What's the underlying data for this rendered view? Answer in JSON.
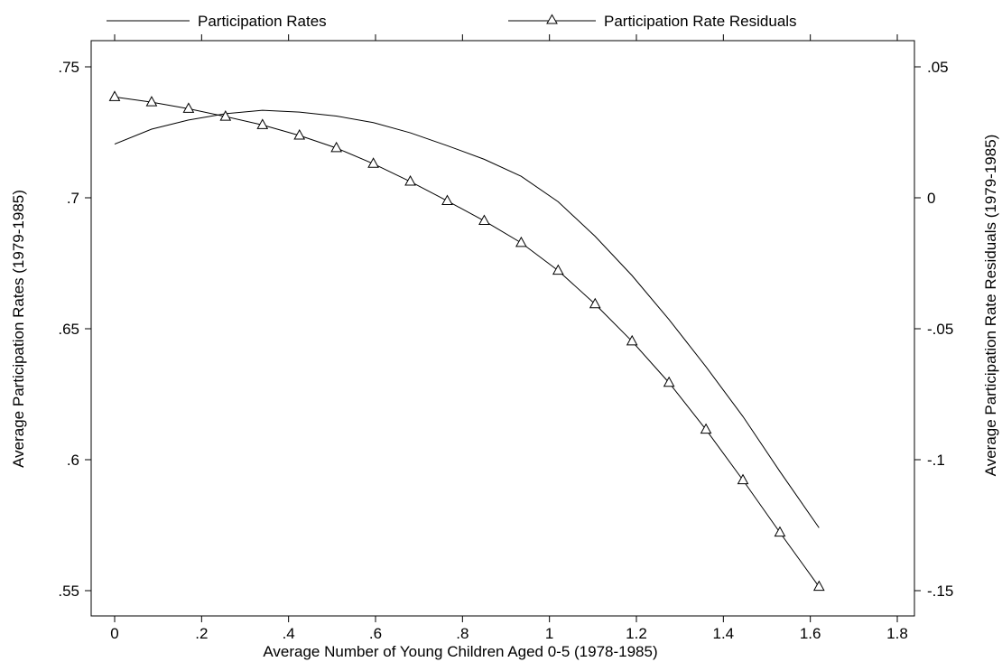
{
  "chart_data": {
    "type": "line",
    "title": "",
    "legend": {
      "placement": "top",
      "entries": [
        {
          "label": "Participation Rates",
          "marker": "none"
        },
        {
          "label": "Participation Rate Residuals",
          "marker": "triangle"
        }
      ]
    },
    "xlabel": "Average Number of Young Children Aged 0-5 (1978-1985)",
    "ylabel_left": "Average Participation Rates (1979-1985)",
    "ylabel_right": "Average Participation Rate Residuals (1979-1985)",
    "xlim": [
      0,
      1.8
    ],
    "ylim_left": [
      0.55,
      0.75
    ],
    "ylim_right": [
      -0.15,
      0.05
    ],
    "x_ticks": [
      {
        "value": 0,
        "label": "0"
      },
      {
        "value": 0.2,
        "label": ".2"
      },
      {
        "value": 0.4,
        "label": ".4"
      },
      {
        "value": 0.6,
        "label": ".6"
      },
      {
        "value": 0.8,
        "label": ".8"
      },
      {
        "value": 1.0,
        "label": "1"
      },
      {
        "value": 1.2,
        "label": "1.2"
      },
      {
        "value": 1.4,
        "label": "1.4"
      },
      {
        "value": 1.6,
        "label": "1.6"
      },
      {
        "value": 1.8,
        "label": "1.8"
      }
    ],
    "y_left_ticks": [
      {
        "value": 0.55,
        "label": ".55"
      },
      {
        "value": 0.6,
        "label": ".6"
      },
      {
        "value": 0.65,
        "label": ".65"
      },
      {
        "value": 0.7,
        "label": ".7"
      },
      {
        "value": 0.75,
        "label": ".75"
      }
    ],
    "y_right_ticks": [
      {
        "value": -0.15,
        "label": "-.15"
      },
      {
        "value": -0.1,
        "label": "-.1"
      },
      {
        "value": -0.05,
        "label": "-.05"
      },
      {
        "value": 0,
        "label": "0"
      },
      {
        "value": 0.05,
        "label": ".05"
      }
    ],
    "series": [
      {
        "name": "Participation Rates",
        "axis": "left",
        "marker": "none",
        "x": [
          0,
          0.085,
          0.17,
          0.255,
          0.34,
          0.425,
          0.51,
          0.595,
          0.68,
          0.765,
          0.85,
          0.935,
          1.02,
          1.105,
          1.19,
          1.275,
          1.36,
          1.445,
          1.53,
          1.62
        ],
        "y": [
          0.7205,
          0.7262,
          0.7297,
          0.7321,
          0.7334,
          0.7327,
          0.7312,
          0.7287,
          0.7248,
          0.7199,
          0.7147,
          0.7082,
          0.6985,
          0.6853,
          0.6703,
          0.6535,
          0.6355,
          0.6165,
          0.5955,
          0.574
        ]
      },
      {
        "name": "Participation Rate Residuals",
        "axis": "right",
        "marker": "triangle",
        "x": [
          0,
          0.085,
          0.17,
          0.255,
          0.34,
          0.425,
          0.51,
          0.595,
          0.68,
          0.765,
          0.85,
          0.935,
          1.02,
          1.105,
          1.19,
          1.275,
          1.36,
          1.445,
          1.53,
          1.62
        ],
        "y": [
          0.0385,
          0.0365,
          0.034,
          0.031,
          0.0278,
          0.0238,
          0.019,
          0.013,
          0.0062,
          -0.0012,
          -0.0088,
          -0.0172,
          -0.0278,
          -0.0406,
          -0.0548,
          -0.0706,
          -0.0885,
          -0.1078,
          -0.1278,
          -0.1485
        ]
      }
    ]
  }
}
